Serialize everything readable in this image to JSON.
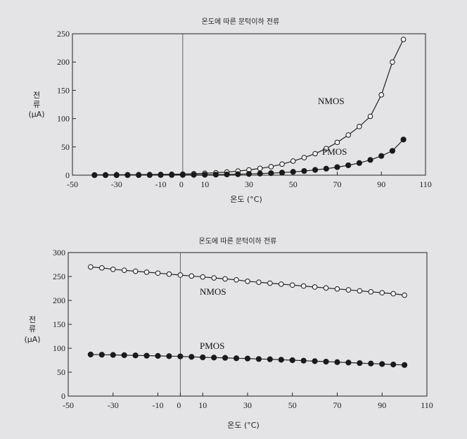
{
  "chart_data": [
    {
      "type": "line",
      "title": "온도에 따른 문턱이하 전류",
      "xlabel": "온도 (°C)",
      "ylabel": [
        "전",
        "류",
        "(μA)"
      ],
      "xlim": [
        -50,
        110
      ],
      "ylim": [
        0,
        250
      ],
      "xticks": [
        -50,
        -30,
        -10,
        0,
        10,
        30,
        50,
        70,
        90,
        110
      ],
      "yticks": [
        0,
        50,
        100,
        150,
        200,
        250
      ],
      "series": [
        {
          "name": "NMOS",
          "marker": "open-circle",
          "x": [
            -40,
            -35,
            -30,
            -25,
            -20,
            -15,
            -10,
            -5,
            0,
            5,
            10,
            15,
            20,
            25,
            30,
            35,
            40,
            45,
            50,
            55,
            60,
            65,
            70,
            75,
            80,
            85,
            90,
            95,
            100
          ],
          "y": [
            0.6,
            0.7,
            0.8,
            0.9,
            1.0,
            1.2,
            1.4,
            1.7,
            2.0,
            2.6,
            3.3,
            4.3,
            5.5,
            7.2,
            9.3,
            12,
            15,
            19.5,
            25,
            31,
            38,
            47,
            58,
            71,
            86,
            104,
            142,
            200,
            240
          ]
        },
        {
          "name": "PMOS",
          "marker": "filled-circle",
          "x": [
            -40,
            -35,
            -30,
            -25,
            -20,
            -15,
            -10,
            -5,
            0,
            5,
            10,
            15,
            20,
            25,
            30,
            35,
            40,
            45,
            50,
            55,
            60,
            65,
            70,
            75,
            80,
            85,
            90,
            95,
            100
          ],
          "y": [
            0.1,
            0.1,
            0.1,
            0.15,
            0.2,
            0.25,
            0.3,
            0.4,
            0.5,
            0.6,
            0.8,
            1.0,
            1.3,
            1.7,
            2.2,
            2.8,
            3.6,
            4.6,
            5.9,
            7.4,
            9.3,
            11.5,
            14.2,
            17.5,
            21.5,
            27,
            34,
            43,
            63
          ]
        }
      ]
    },
    {
      "type": "line",
      "title": "온도에 따른 문턱이하 전류",
      "xlabel": "온도 (°C)",
      "ylabel": [
        "전",
        "류",
        "(μA)"
      ],
      "xlim": [
        -50,
        110
      ],
      "ylim": [
        0,
        300
      ],
      "xticks": [
        -50,
        -30,
        -10,
        0,
        10,
        30,
        50,
        70,
        90,
        110
      ],
      "yticks": [
        0,
        50,
        100,
        150,
        200,
        250,
        300
      ],
      "series": [
        {
          "name": "NMOS",
          "marker": "open-circle",
          "x": [
            -40,
            -35,
            -30,
            -25,
            -20,
            -15,
            -10,
            -5,
            0,
            5,
            10,
            15,
            20,
            25,
            30,
            35,
            40,
            45,
            50,
            55,
            60,
            65,
            70,
            75,
            80,
            85,
            90,
            95,
            100
          ],
          "y": [
            270,
            268,
            265,
            263,
            261,
            259,
            257,
            255,
            253,
            251,
            249,
            247,
            245,
            243,
            240,
            238,
            236,
            234,
            232,
            230,
            228,
            226,
            224,
            222,
            220,
            218,
            216,
            214,
            211
          ]
        },
        {
          "name": "PMOS",
          "marker": "filled-circle",
          "x": [
            -40,
            -35,
            -30,
            -25,
            -20,
            -15,
            -10,
            -5,
            0,
            5,
            10,
            15,
            20,
            25,
            30,
            35,
            40,
            45,
            50,
            55,
            60,
            65,
            70,
            75,
            80,
            85,
            90,
            95,
            100
          ],
          "y": [
            87,
            86.5,
            86,
            85.5,
            85,
            84.5,
            84,
            83.5,
            83,
            82,
            81,
            80.5,
            80,
            79,
            78.5,
            77.5,
            77,
            76,
            75,
            74,
            73,
            72,
            71,
            70,
            69,
            68,
            67,
            66,
            65
          ]
        }
      ]
    }
  ]
}
